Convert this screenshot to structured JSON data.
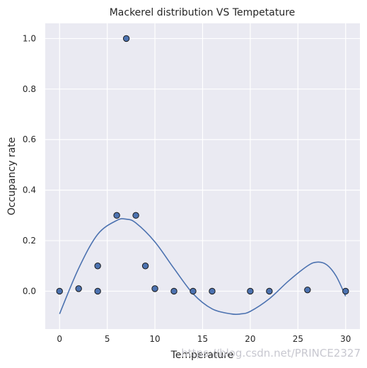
{
  "chart_data": {
    "type": "scatter",
    "title": "Mackerel distribution VS Tempetature",
    "xlabel": "Temperature",
    "ylabel": "Occupancy rate",
    "xlim": [
      -1.5,
      31.5
    ],
    "ylim": [
      -0.15,
      1.06
    ],
    "xticks": [
      0,
      5,
      10,
      15,
      20,
      25,
      30
    ],
    "yticks": [
      0.0,
      0.2,
      0.4,
      0.6,
      0.8,
      1.0
    ],
    "grid": true,
    "background": "#eaeaf2",
    "marker_color": "#4c72b0",
    "line_color": "#4c72b0",
    "points": {
      "x": [
        0,
        2,
        4,
        4,
        6,
        7,
        8,
        9,
        10,
        12,
        14,
        16,
        20,
        22,
        26,
        30
      ],
      "y": [
        0.0,
        0.01,
        0.1,
        0.0,
        0.3,
        1.0,
        0.3,
        0.1,
        0.01,
        0.0,
        0.0,
        0.0,
        0.0,
        0.0,
        0.005,
        0.0
      ]
    },
    "fit_curve": {
      "x": [
        0,
        2,
        4,
        6,
        7,
        8,
        10,
        12,
        14,
        16,
        18,
        19,
        20,
        22,
        24,
        26,
        27,
        28,
        29,
        30
      ],
      "y": [
        -0.09,
        0.09,
        0.225,
        0.28,
        0.285,
        0.27,
        0.195,
        0.09,
        -0.01,
        -0.07,
        -0.09,
        -0.09,
        -0.08,
        -0.03,
        0.04,
        0.1,
        0.115,
        0.105,
        0.06,
        -0.02
      ]
    }
  },
  "watermark": "https://blog.csdn.net/PRINCE2327"
}
